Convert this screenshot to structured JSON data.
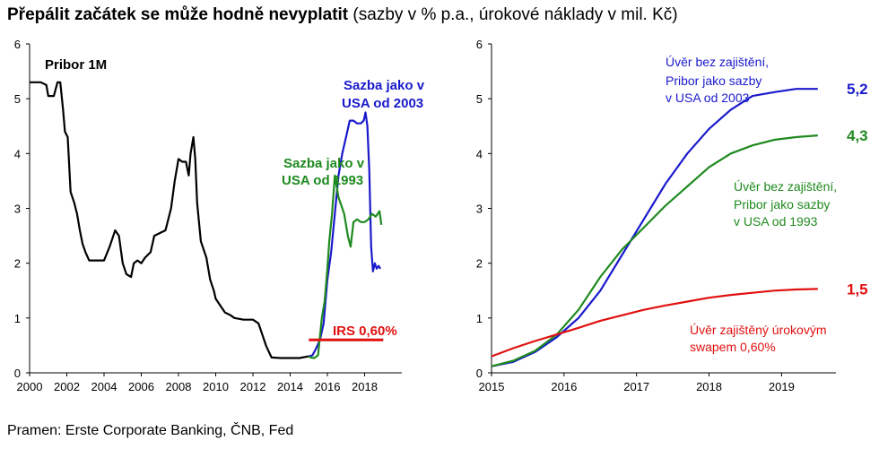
{
  "title": {
    "bold": "Přepálit začátek se může hodně nevyplatit",
    "rest": " (sazby v % p.a., úrokové náklady v mil. Kč)"
  },
  "source": "Pramen: Erste Corporate Banking, ČNB, Fed",
  "colors": {
    "black": "#000000",
    "blue": "#1a1acc",
    "green": "#1f8a1f",
    "red": "#e01010"
  },
  "chart_data": [
    {
      "type": "line",
      "label": "Pribor 1M",
      "xlim": [
        2000,
        2020
      ],
      "ylim": [
        0,
        6
      ],
      "xticks": [
        "2000",
        "2002",
        "2004",
        "2006",
        "2008",
        "2010",
        "2012",
        "2014",
        "2016",
        "2018"
      ],
      "yticks": [
        "0",
        "1",
        "2",
        "3",
        "4",
        "5",
        "6"
      ],
      "series": [
        {
          "color": "black",
          "points": [
            [
              2000.0,
              5.3
            ],
            [
              2000.6,
              5.3
            ],
            [
              2000.9,
              5.25
            ],
            [
              2001.0,
              5.05
            ],
            [
              2001.3,
              5.05
            ],
            [
              2001.5,
              5.3
            ],
            [
              2001.65,
              5.3
            ],
            [
              2001.8,
              4.8
            ],
            [
              2001.9,
              4.4
            ],
            [
              2002.05,
              4.3
            ],
            [
              2002.2,
              3.3
            ],
            [
              2002.4,
              3.1
            ],
            [
              2002.55,
              2.9
            ],
            [
              2002.7,
              2.6
            ],
            [
              2002.85,
              2.35
            ],
            [
              2003.0,
              2.2
            ],
            [
              2003.2,
              2.05
            ],
            [
              2003.6,
              2.05
            ],
            [
              2004.0,
              2.05
            ],
            [
              2004.3,
              2.3
            ],
            [
              2004.6,
              2.6
            ],
            [
              2004.8,
              2.5
            ],
            [
              2005.0,
              2.0
            ],
            [
              2005.2,
              1.8
            ],
            [
              2005.45,
              1.75
            ],
            [
              2005.6,
              2.0
            ],
            [
              2005.8,
              2.05
            ],
            [
              2006.0,
              2.0
            ],
            [
              2006.2,
              2.1
            ],
            [
              2006.5,
              2.2
            ],
            [
              2006.7,
              2.5
            ],
            [
              2007.0,
              2.55
            ],
            [
              2007.3,
              2.6
            ],
            [
              2007.6,
              3.0
            ],
            [
              2007.8,
              3.5
            ],
            [
              2008.0,
              3.9
            ],
            [
              2008.2,
              3.85
            ],
            [
              2008.4,
              3.85
            ],
            [
              2008.55,
              3.6
            ],
            [
              2008.65,
              4.0
            ],
            [
              2008.8,
              4.3
            ],
            [
              2008.9,
              3.9
            ],
            [
              2009.0,
              3.1
            ],
            [
              2009.2,
              2.4
            ],
            [
              2009.5,
              2.1
            ],
            [
              2009.7,
              1.7
            ],
            [
              2009.9,
              1.5
            ],
            [
              2010.0,
              1.35
            ],
            [
              2010.3,
              1.2
            ],
            [
              2010.5,
              1.1
            ],
            [
              2010.8,
              1.05
            ],
            [
              2011.0,
              1.0
            ],
            [
              2011.5,
              0.97
            ],
            [
              2012.0,
              0.97
            ],
            [
              2012.3,
              0.9
            ],
            [
              2012.5,
              0.7
            ],
            [
              2012.7,
              0.5
            ],
            [
              2012.9,
              0.35
            ],
            [
              2013.0,
              0.28
            ],
            [
              2013.5,
              0.27
            ],
            [
              2014.0,
              0.27
            ],
            [
              2014.5,
              0.27
            ],
            [
              2015.0,
              0.3
            ]
          ]
        },
        {
          "color": "blue",
          "points": [
            [
              2015.0,
              0.3
            ],
            [
              2015.2,
              0.32
            ],
            [
              2015.4,
              0.45
            ],
            [
              2015.6,
              0.6
            ],
            [
              2015.8,
              0.9
            ],
            [
              2016.0,
              1.7
            ],
            [
              2016.2,
              2.2
            ],
            [
              2016.4,
              2.9
            ],
            [
              2016.6,
              3.6
            ],
            [
              2016.8,
              4.0
            ],
            [
              2017.0,
              4.3
            ],
            [
              2017.2,
              4.6
            ],
            [
              2017.4,
              4.6
            ],
            [
              2017.6,
              4.55
            ],
            [
              2017.8,
              4.55
            ],
            [
              2017.95,
              4.6
            ],
            [
              2018.05,
              4.75
            ],
            [
              2018.15,
              4.5
            ],
            [
              2018.25,
              3.7
            ],
            [
              2018.35,
              2.3
            ],
            [
              2018.45,
              1.85
            ],
            [
              2018.55,
              2.0
            ],
            [
              2018.65,
              1.9
            ],
            [
              2018.75,
              1.95
            ],
            [
              2018.85,
              1.9
            ]
          ]
        },
        {
          "color": "green",
          "points": [
            [
              2015.0,
              0.3
            ],
            [
              2015.1,
              0.28
            ],
            [
              2015.3,
              0.27
            ],
            [
              2015.5,
              0.32
            ],
            [
              2015.7,
              1.0
            ],
            [
              2015.85,
              1.3
            ],
            [
              2016.0,
              1.9
            ],
            [
              2016.1,
              2.4
            ],
            [
              2016.25,
              2.9
            ],
            [
              2016.4,
              3.6
            ],
            [
              2016.6,
              3.2
            ],
            [
              2016.75,
              3.05
            ],
            [
              2016.9,
              2.9
            ],
            [
              2017.1,
              2.5
            ],
            [
              2017.25,
              2.3
            ],
            [
              2017.4,
              2.75
            ],
            [
              2017.6,
              2.8
            ],
            [
              2017.8,
              2.75
            ],
            [
              2018.0,
              2.75
            ],
            [
              2018.2,
              2.8
            ],
            [
              2018.4,
              2.9
            ],
            [
              2018.6,
              2.85
            ],
            [
              2018.8,
              2.95
            ],
            [
              2018.9,
              2.7
            ]
          ]
        },
        {
          "color": "red",
          "points": [
            [
              2015.0,
              0.6
            ],
            [
              2019.0,
              0.6
            ]
          ]
        }
      ],
      "annotations": {
        "series_label": "Pribor 1M",
        "blue": [
          "Sazba jako v",
          "USA od 2003"
        ],
        "green": [
          "Sazba jako v",
          "USA od 1993"
        ],
        "red": "IRS 0,60%"
      }
    },
    {
      "type": "line",
      "xlim": [
        2015,
        2019.75
      ],
      "ylim": [
        0,
        6
      ],
      "xticks": [
        "2015",
        "2016",
        "2017",
        "2018",
        "2019"
      ],
      "yticks": [
        "0",
        "1",
        "2",
        "3",
        "4",
        "5",
        "6"
      ],
      "series": [
        {
          "color": "blue",
          "end_label": "5,2",
          "points": [
            [
              2015.0,
              0.12
            ],
            [
              2015.3,
              0.2
            ],
            [
              2015.6,
              0.38
            ],
            [
              2015.9,
              0.65
            ],
            [
              2016.2,
              1.0
            ],
            [
              2016.5,
              1.5
            ],
            [
              2016.8,
              2.15
            ],
            [
              2017.1,
              2.8
            ],
            [
              2017.4,
              3.45
            ],
            [
              2017.7,
              4.0
            ],
            [
              2018.0,
              4.45
            ],
            [
              2018.3,
              4.8
            ],
            [
              2018.6,
              5.05
            ],
            [
              2018.9,
              5.12
            ],
            [
              2019.2,
              5.18
            ],
            [
              2019.5,
              5.18
            ]
          ]
        },
        {
          "color": "green",
          "end_label": "4,3",
          "points": [
            [
              2015.0,
              0.12
            ],
            [
              2015.3,
              0.22
            ],
            [
              2015.6,
              0.4
            ],
            [
              2015.9,
              0.7
            ],
            [
              2016.2,
              1.15
            ],
            [
              2016.5,
              1.75
            ],
            [
              2016.8,
              2.25
            ],
            [
              2017.1,
              2.65
            ],
            [
              2017.4,
              3.05
            ],
            [
              2017.7,
              3.4
            ],
            [
              2018.0,
              3.75
            ],
            [
              2018.3,
              4.0
            ],
            [
              2018.6,
              4.15
            ],
            [
              2018.9,
              4.25
            ],
            [
              2019.2,
              4.3
            ],
            [
              2019.5,
              4.33
            ]
          ]
        },
        {
          "color": "red",
          "end_label": "1,5",
          "points": [
            [
              2015.0,
              0.3
            ],
            [
              2015.3,
              0.45
            ],
            [
              2015.6,
              0.58
            ],
            [
              2015.9,
              0.7
            ],
            [
              2016.2,
              0.82
            ],
            [
              2016.5,
              0.95
            ],
            [
              2016.8,
              1.05
            ],
            [
              2017.1,
              1.15
            ],
            [
              2017.4,
              1.23
            ],
            [
              2017.7,
              1.3
            ],
            [
              2018.0,
              1.37
            ],
            [
              2018.3,
              1.42
            ],
            [
              2018.6,
              1.46
            ],
            [
              2018.9,
              1.5
            ],
            [
              2019.2,
              1.52
            ],
            [
              2019.5,
              1.53
            ]
          ]
        }
      ],
      "annotations": {
        "blue": [
          "Úvěr bez zajištění,",
          "Pribor jako sazby",
          "v USA od 2003"
        ],
        "green": [
          "Úvěr bez zajištění,",
          "Pribor  jako sazby",
          "v USA od 1993"
        ],
        "red": [
          "Úvěr zajištěný úrokovým",
          "swapem 0,60%"
        ]
      }
    }
  ]
}
